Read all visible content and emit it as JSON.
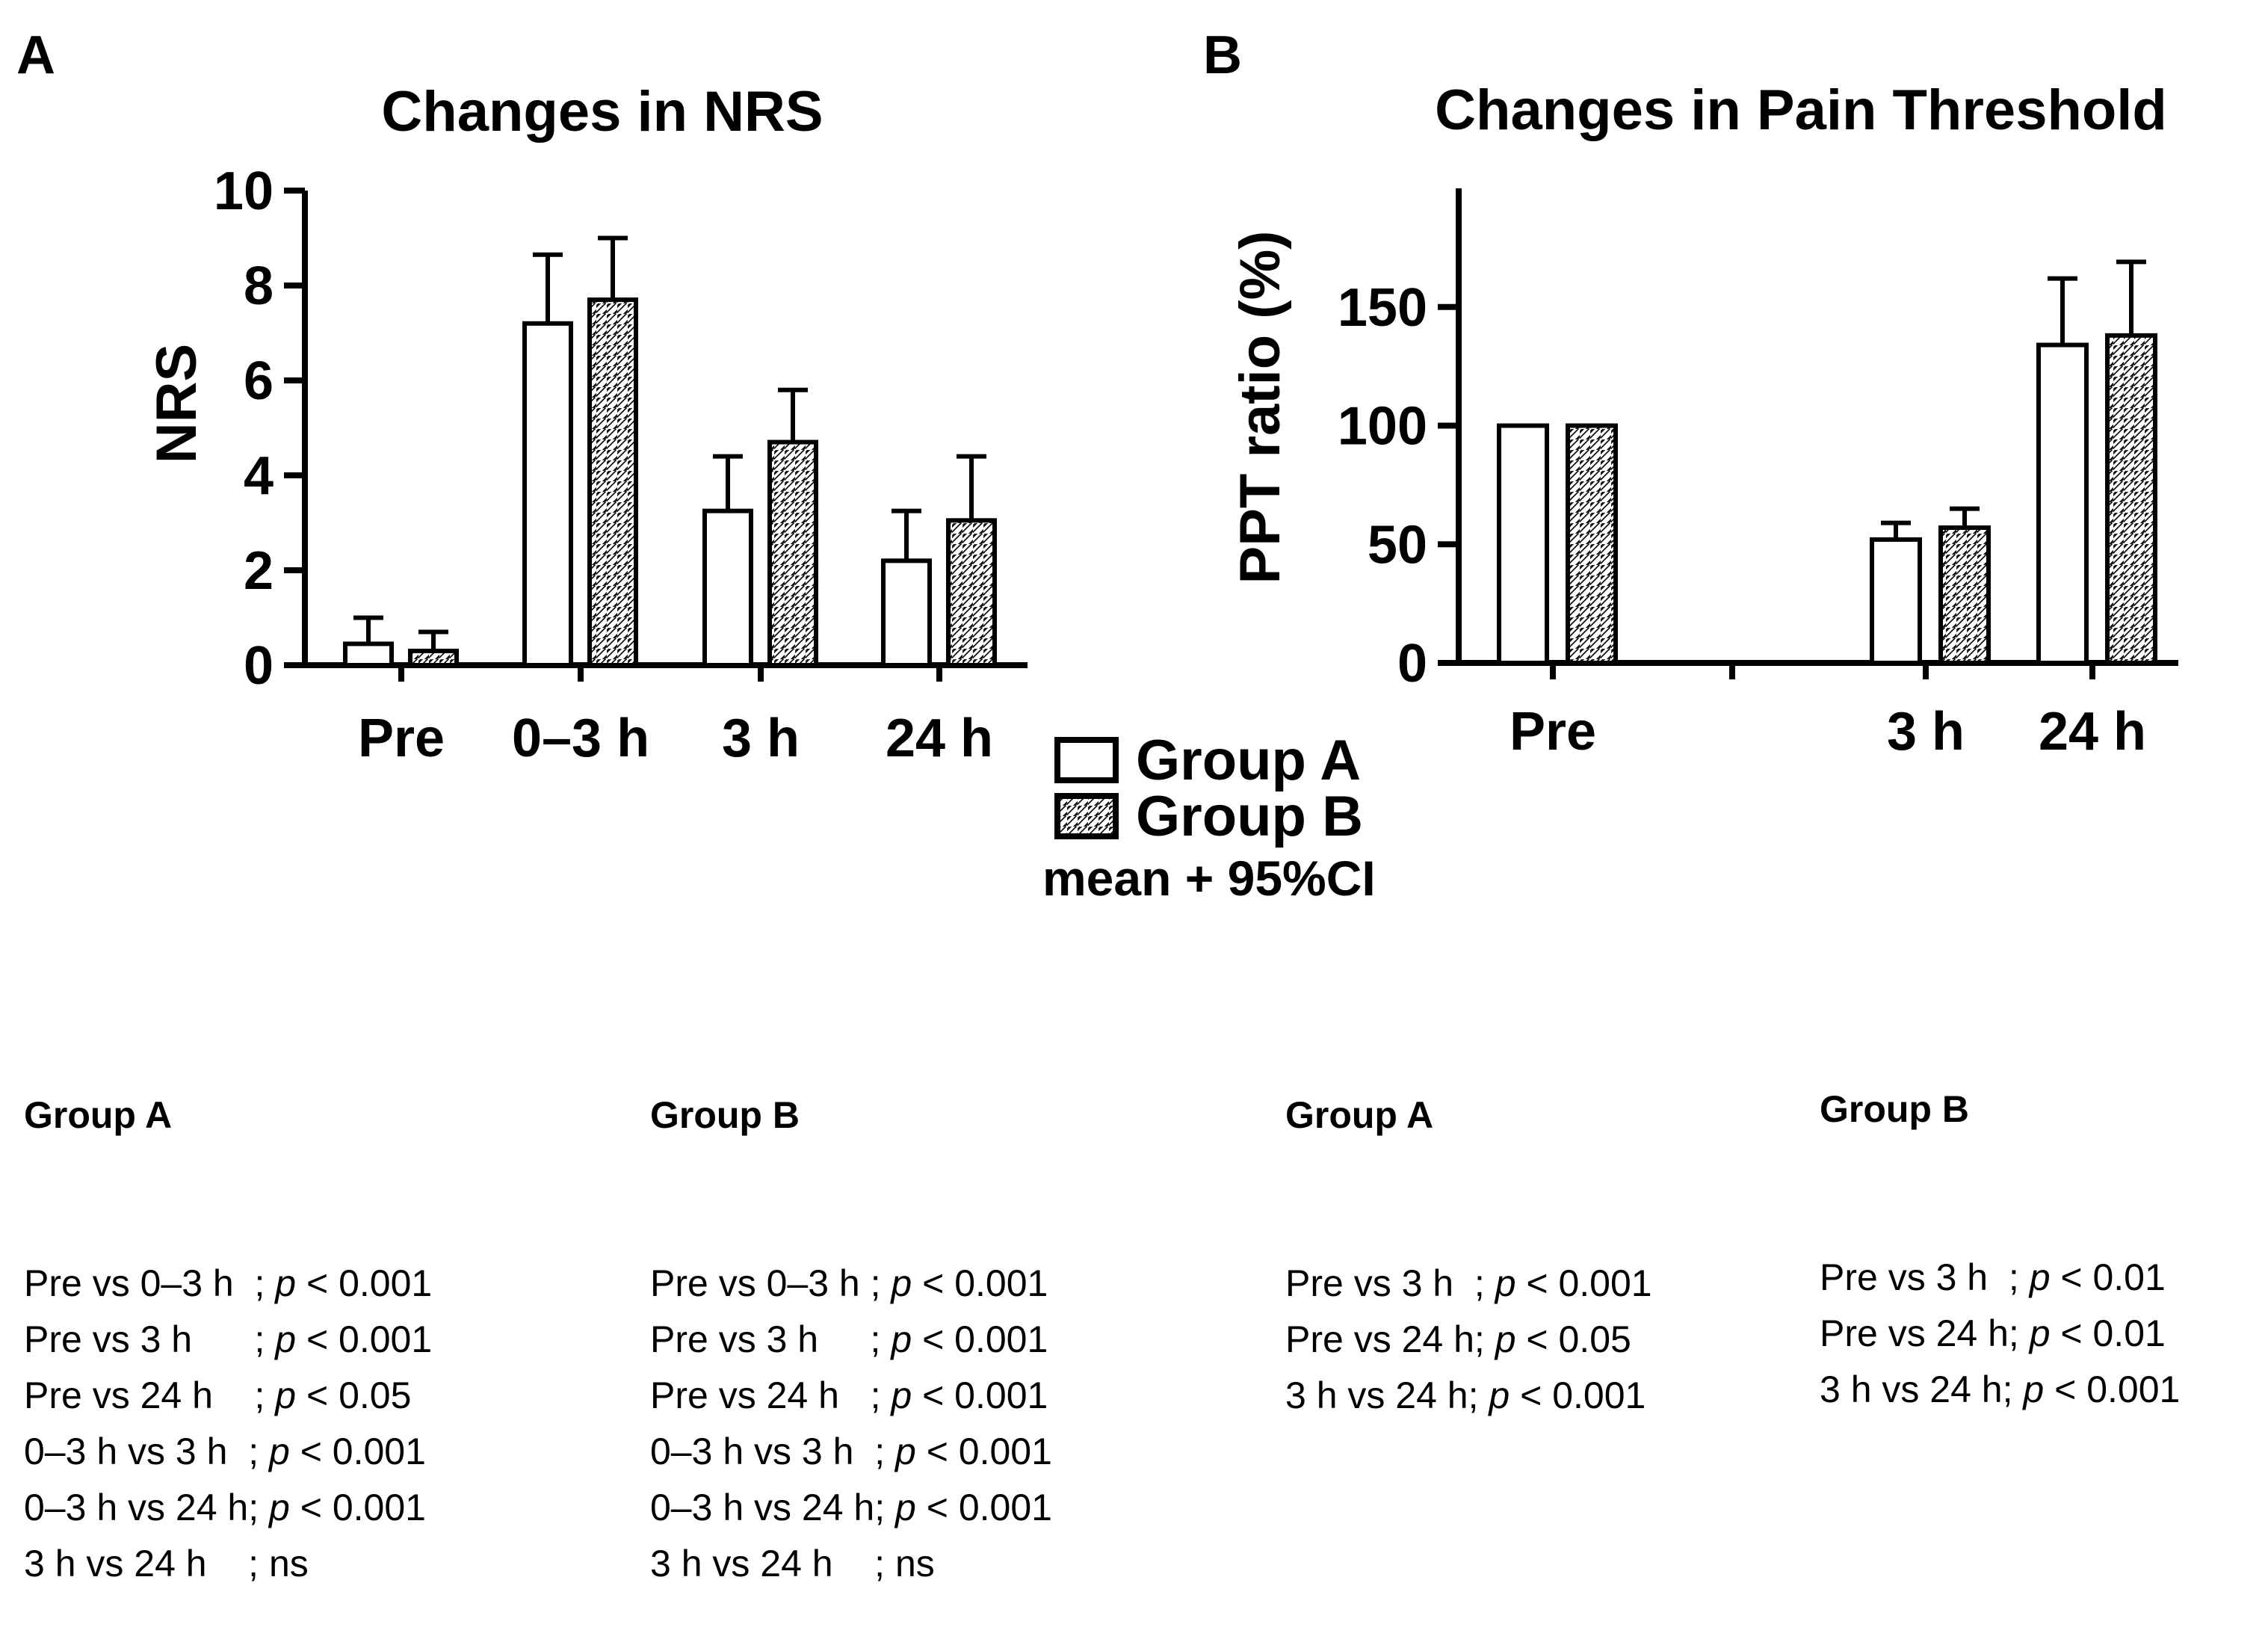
{
  "panel_a": {
    "label": "A",
    "chart_data": {
      "type": "bar",
      "title": "Changes in NRS",
      "xlabel": "",
      "ylabel": "NRS",
      "ylim": [
        0,
        10
      ],
      "yticks": [
        "0",
        "2",
        "4",
        "6",
        "8",
        "10"
      ],
      "categories": [
        "Pre",
        "0–3 h",
        "3 h",
        "24 h"
      ],
      "series": [
        {
          "name": "Group A",
          "pattern": "open",
          "values": [
            0.45,
            7.2,
            3.25,
            2.2
          ],
          "ci_upper": [
            1.0,
            8.65,
            4.4,
            3.25
          ]
        },
        {
          "name": "Group B",
          "pattern": "hatched",
          "values": [
            0.3,
            7.7,
            4.7,
            3.05
          ],
          "ci_upper": [
            0.7,
            9.0,
            5.8,
            4.4
          ]
        }
      ]
    }
  },
  "panel_b": {
    "label": "B",
    "chart_data": {
      "type": "bar",
      "title": "Changes in Pain Threshold",
      "xlabel": "",
      "ylabel": "PPT ratio (%)",
      "ylim": [
        0,
        200
      ],
      "yticks": [
        "0",
        "50",
        "100",
        "150"
      ],
      "categories": [
        "Pre",
        "",
        "3 h",
        "24 h"
      ],
      "series": [
        {
          "name": "Group A",
          "pattern": "open",
          "values": [
            100,
            0,
            52,
            134
          ],
          "ci_upper": [
            null,
            null,
            59,
            162
          ]
        },
        {
          "name": "Group B",
          "pattern": "hatched",
          "values": [
            100,
            0,
            57,
            138
          ],
          "ci_upper": [
            null,
            null,
            65,
            169
          ]
        }
      ]
    }
  },
  "legend": {
    "items": [
      {
        "label": "Group A",
        "pattern": "open"
      },
      {
        "label": "Group B",
        "pattern": "hatched"
      }
    ],
    "note": "mean + 95%CI"
  },
  "stats": [
    {
      "header": "Group A",
      "rows": [
        {
          "cmp": "Pre vs 0–3 h  ;",
          "p": "p",
          "val": " < 0.001"
        },
        {
          "cmp": "Pre vs 3 h      ;",
          "p": "p",
          "val": " < 0.001"
        },
        {
          "cmp": "Pre vs 24 h    ;",
          "p": "p",
          "val": " < 0.05"
        },
        {
          "cmp": "0–3 h vs 3 h  ;",
          "p": "p",
          "val": " < 0.001"
        },
        {
          "cmp": "0–3 h vs 24 h;",
          "p": "p",
          "val": " < 0.001"
        },
        {
          "cmp": "3 h vs 24 h    ; ns",
          "p": "",
          "val": ""
        }
      ]
    },
    {
      "header": "Group B",
      "rows": [
        {
          "cmp": "Pre vs 0–3 h ;",
          "p": "p",
          "val": " < 0.001"
        },
        {
          "cmp": "Pre vs 3 h     ;",
          "p": "p",
          "val": " < 0.001"
        },
        {
          "cmp": "Pre vs 24 h   ;",
          "p": "p",
          "val": " < 0.001"
        },
        {
          "cmp": "0–3 h vs 3 h  ;",
          "p": "p",
          "val": " < 0.001"
        },
        {
          "cmp": "0–3 h vs 24 h;",
          "p": "p",
          "val": " < 0.001"
        },
        {
          "cmp": "3 h vs 24 h    ; ns",
          "p": "",
          "val": ""
        }
      ]
    },
    {
      "header": "Group A",
      "rows": [
        {
          "cmp": "Pre vs 3 h  ;",
          "p": "p",
          "val": " < 0.001"
        },
        {
          "cmp": "Pre vs 24 h;",
          "p": "p",
          "val": " < 0.05"
        },
        {
          "cmp": "3 h vs 24 h;",
          "p": "p",
          "val": " < 0.001"
        }
      ]
    },
    {
      "header": "Group B",
      "rows": [
        {
          "cmp": "Pre vs 3 h  ;",
          "p": "p",
          "val": " < 0.01"
        },
        {
          "cmp": "Pre vs 24 h;",
          "p": "p",
          "val": " < 0.01"
        },
        {
          "cmp": "3 h vs 24 h;",
          "p": "p",
          "val": " < 0.001"
        }
      ]
    }
  ]
}
